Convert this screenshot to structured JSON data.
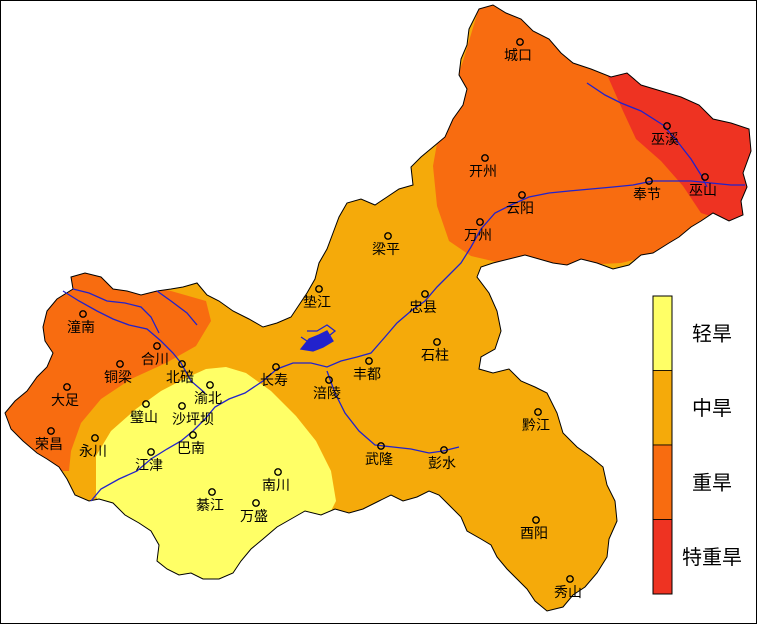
{
  "legend": {
    "items": [
      {
        "label": "轻旱",
        "color": "#ffff66"
      },
      {
        "label": "中旱",
        "color": "#f5aa0a"
      },
      {
        "label": "重旱",
        "color": "#f86c10"
      },
      {
        "label": "特重旱",
        "color": "#ee3322"
      }
    ]
  },
  "colors": {
    "river": "#2222cc",
    "boundary": "#000000",
    "light": "#ffff66",
    "moderate": "#f5aa0a",
    "severe": "#f86c10",
    "extreme": "#ee3322"
  },
  "cities": [
    {
      "id": "chengkou",
      "name": "城口"
    },
    {
      "id": "wuxi",
      "name": "巫溪"
    },
    {
      "id": "kaizhou",
      "name": "开州"
    },
    {
      "id": "fengjie",
      "name": "奉节"
    },
    {
      "id": "wushan",
      "name": "巫山"
    },
    {
      "id": "yunyang",
      "name": "云阳"
    },
    {
      "id": "wanzhou",
      "name": "万州"
    },
    {
      "id": "liangping",
      "name": "梁平"
    },
    {
      "id": "dianjiang",
      "name": "垫江"
    },
    {
      "id": "zhongxian",
      "name": "忠县"
    },
    {
      "id": "shizhu",
      "name": "石柱"
    },
    {
      "id": "fengdu",
      "name": "丰都"
    },
    {
      "id": "fuling",
      "name": "涪陵"
    },
    {
      "id": "changshou",
      "name": "长寿"
    },
    {
      "id": "tongnan",
      "name": "潼南"
    },
    {
      "id": "hechuan",
      "name": "合川"
    },
    {
      "id": "tongliang",
      "name": "铜梁"
    },
    {
      "id": "beibei",
      "name": "北碚"
    },
    {
      "id": "yubei",
      "name": "渝北"
    },
    {
      "id": "dazu",
      "name": "大足"
    },
    {
      "id": "bishan",
      "name": "璧山"
    },
    {
      "id": "shapingba",
      "name": "沙坪坝"
    },
    {
      "id": "rongchang",
      "name": "荣昌"
    },
    {
      "id": "yongchuan",
      "name": "永川"
    },
    {
      "id": "jiangjin",
      "name": "江津"
    },
    {
      "id": "banan",
      "name": "巴南"
    },
    {
      "id": "qijiang",
      "name": "綦江"
    },
    {
      "id": "nanchuan",
      "name": "南川"
    },
    {
      "id": "wansheng",
      "name": "万盛"
    },
    {
      "id": "wulong",
      "name": "武隆"
    },
    {
      "id": "pengshui",
      "name": "彭水"
    },
    {
      "id": "qianjiang",
      "name": "黔江"
    },
    {
      "id": "youyang",
      "name": "酉阳"
    },
    {
      "id": "xiushan",
      "name": "秀山"
    }
  ]
}
